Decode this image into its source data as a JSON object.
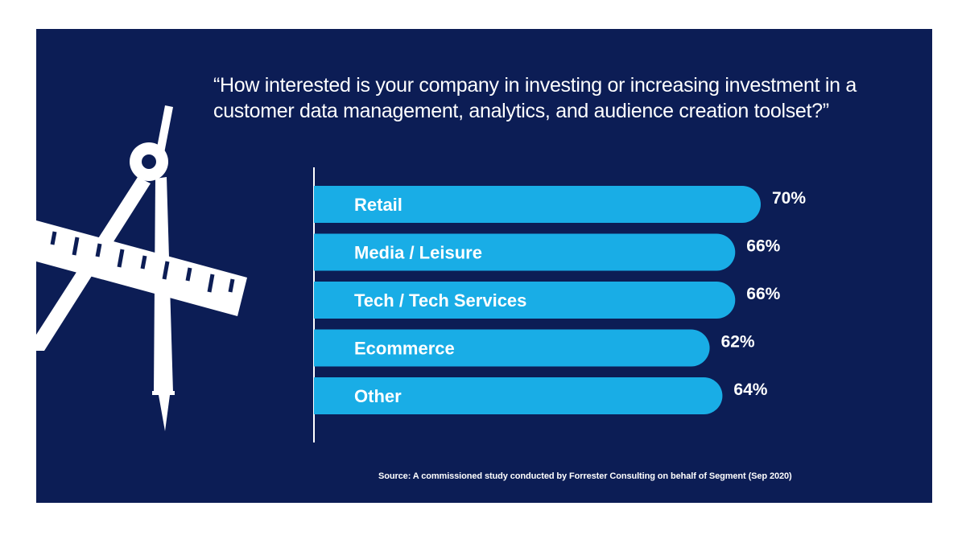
{
  "colors": {
    "background": "#0c1d55",
    "bar": "#19ade6",
    "text": "#ffffff",
    "illustration": "#ffffff"
  },
  "icons": [
    "drafting-compass-icon",
    "ruler-icon"
  ],
  "chart_data": {
    "type": "bar",
    "orientation": "horizontal",
    "title": "“How interested is your company in investing or increasing investment in a customer data management, analytics, and audience creation toolset?”",
    "categories": [
      "Retail",
      "Media / Leisure",
      "Tech / Tech Services",
      "Ecommerce",
      "Other"
    ],
    "values": [
      70,
      66,
      66,
      62,
      64
    ],
    "value_labels": [
      "70%",
      "66%",
      "66%",
      "62%",
      "64%"
    ],
    "unit": "%",
    "xlim": [
      0,
      70
    ],
    "grid": false,
    "legend": "none"
  },
  "footer": {
    "source": "Source: A commissioned study conducted by Forrester Consulting on behalf of Segment (Sep 2020)"
  }
}
